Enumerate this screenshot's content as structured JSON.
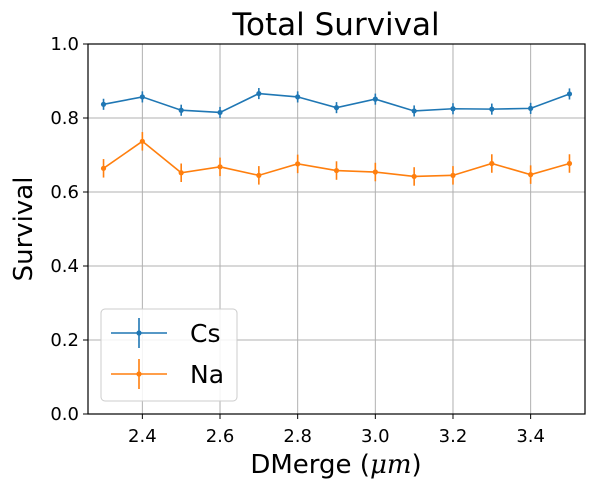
{
  "chart_data": {
    "type": "line",
    "title": "Total Survival",
    "xlabel": "DMerge ",
    "xlabel_unit": "μm",
    "ylabel": "Survival",
    "xlim": [
      2.26,
      3.54
    ],
    "ylim": [
      0.0,
      1.0
    ],
    "x_ticks": [
      2.4,
      2.6,
      2.8,
      3.0,
      3.2,
      3.4
    ],
    "x_tick_labels": [
      "2.4",
      "2.6",
      "2.8",
      "3.0",
      "3.2",
      "3.4"
    ],
    "y_ticks": [
      0.0,
      0.2,
      0.4,
      0.6,
      0.8,
      1.0
    ],
    "y_tick_labels": [
      "0.0",
      "0.2",
      "0.4",
      "0.6",
      "0.8",
      "1.0"
    ],
    "grid": true,
    "legend_position": "lower-left",
    "x": [
      2.3,
      2.4,
      2.5,
      2.6,
      2.7,
      2.8,
      2.9,
      3.0,
      3.1,
      3.2,
      3.3,
      3.4,
      3.5
    ],
    "series": [
      {
        "name": "Cs",
        "color": "#1f77b4",
        "values": [
          0.837,
          0.857,
          0.821,
          0.815,
          0.866,
          0.857,
          0.828,
          0.851,
          0.819,
          0.825,
          0.824,
          0.826,
          0.865
        ],
        "errors": [
          0.015,
          0.015,
          0.015,
          0.015,
          0.015,
          0.015,
          0.015,
          0.015,
          0.015,
          0.015,
          0.015,
          0.015,
          0.015
        ]
      },
      {
        "name": "Na",
        "color": "#ff7f0e",
        "values": [
          0.664,
          0.737,
          0.652,
          0.668,
          0.645,
          0.676,
          0.658,
          0.654,
          0.642,
          0.645,
          0.677,
          0.647,
          0.677
        ],
        "errors": [
          0.025,
          0.025,
          0.025,
          0.025,
          0.025,
          0.025,
          0.025,
          0.025,
          0.025,
          0.025,
          0.025,
          0.025,
          0.025
        ]
      }
    ]
  }
}
